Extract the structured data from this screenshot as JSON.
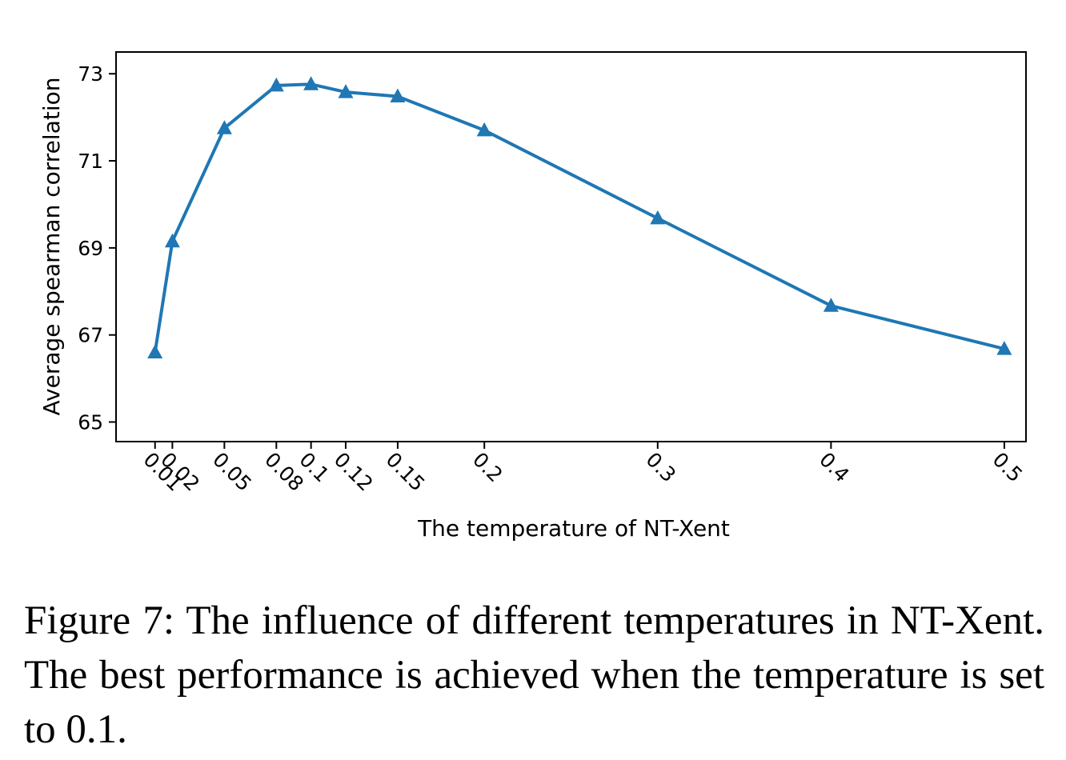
{
  "chart_data": {
    "type": "line",
    "title": "",
    "xlabel": "The temperature of NT-Xent",
    "ylabel": "Average spearman correlation",
    "x": [
      0.01,
      0.02,
      0.05,
      0.08,
      0.1,
      0.12,
      0.15,
      0.2,
      0.3,
      0.4,
      0.5
    ],
    "xtick_labels": [
      "0.01",
      "0.02",
      "0.05",
      "0.08",
      "0.1",
      "0.12",
      "0.15",
      "0.2",
      "0.3",
      "0.4",
      "0.5"
    ],
    "yticks": [
      65,
      67,
      69,
      71,
      73
    ],
    "ytick_labels": [
      "65",
      "67",
      "69",
      "71",
      "73"
    ],
    "ylim": [
      64.55,
      73.5
    ],
    "xlim": [
      -0.0125,
      0.5125
    ],
    "series": [
      {
        "name": "Average spearman correlation",
        "marker": "triangle",
        "color": "#1f77b4",
        "values": [
          66.6,
          69.15,
          71.75,
          72.73,
          72.76,
          72.58,
          72.48,
          71.7,
          69.68,
          67.67,
          66.68
        ]
      }
    ],
    "grid": false,
    "legend": "none"
  },
  "caption": {
    "text": "Figure 7: The influence of different temperatures in NT-Xent. The best performance is achieved when the temperature is set to 0.1."
  }
}
